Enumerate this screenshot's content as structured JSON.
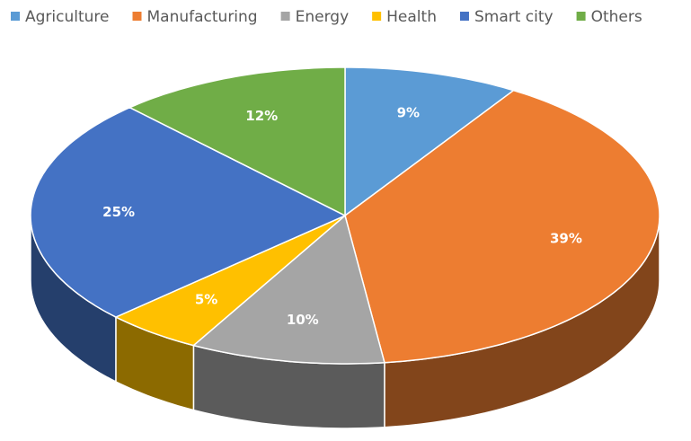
{
  "chart_data": {
    "type": "pie",
    "categories": [
      "Agriculture",
      "Manufacturing",
      "Energy",
      "Health",
      "Smart city",
      "Others"
    ],
    "values": [
      9,
      39,
      10,
      5,
      25,
      12
    ],
    "value_labels": [
      "9%",
      "39%",
      "10%",
      "5%",
      "25%",
      "12%"
    ],
    "colors": [
      "#5b9bd5",
      "#ed7d31",
      "#a5a5a5",
      "#ffc000",
      "#4472c4",
      "#70ad47"
    ],
    "legend": "top"
  }
}
